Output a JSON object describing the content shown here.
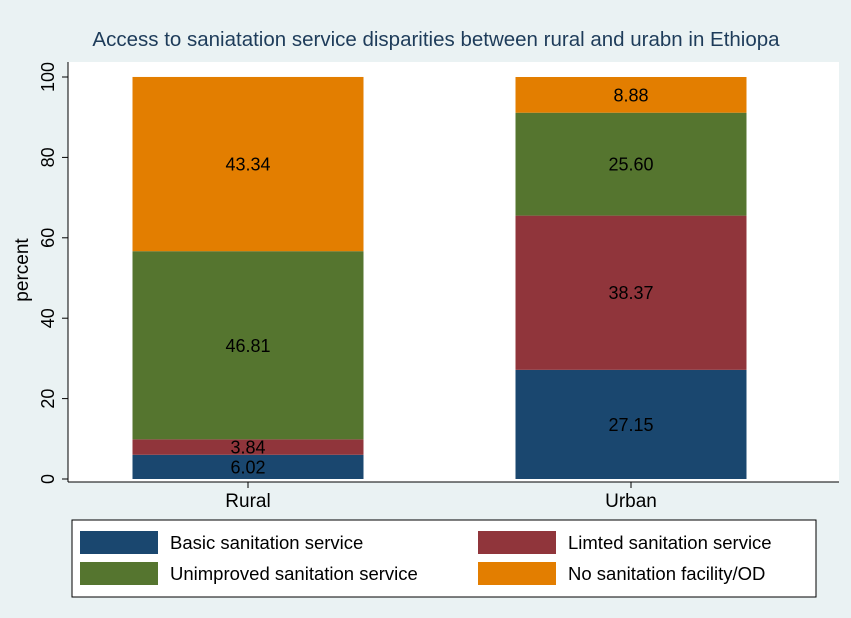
{
  "chart_data": {
    "type": "bar",
    "stacked": true,
    "title": "Access to saniatation service disparities between rural and urabn in Ethiopa",
    "xlabel": "",
    "ylabel": "percent",
    "ylim": [
      0,
      100
    ],
    "yticks": [
      0,
      20,
      40,
      60,
      80,
      100
    ],
    "categories": [
      "Rural",
      "Urban"
    ],
    "series": [
      {
        "name": "Basic sanitation service",
        "color": "#1a476f",
        "values": [
          6.02,
          27.15
        ],
        "labels": [
          "6.02",
          "27.15"
        ]
      },
      {
        "name": "Limted sanitation service",
        "color": "#90353b",
        "values": [
          3.84,
          38.37
        ],
        "labels": [
          "3.84",
          "38.37"
        ]
      },
      {
        "name": "Unimproved sanitation service",
        "color": "#55752f",
        "values": [
          46.81,
          25.6
        ],
        "labels": [
          "46.81",
          "25.60"
        ]
      },
      {
        "name": "No sanitation facility/OD",
        "color": "#e37e00",
        "values": [
          43.34,
          8.88
        ],
        "labels": [
          "43.34",
          "8.88"
        ]
      }
    ],
    "legend": {
      "position": "bottom",
      "columns": 2,
      "order": [
        0,
        1,
        2,
        3
      ]
    },
    "colors": {
      "background": "#eaf2f3",
      "plot_background": "#ffffff",
      "title": "#1e3c5a",
      "axis": "#000000"
    }
  }
}
